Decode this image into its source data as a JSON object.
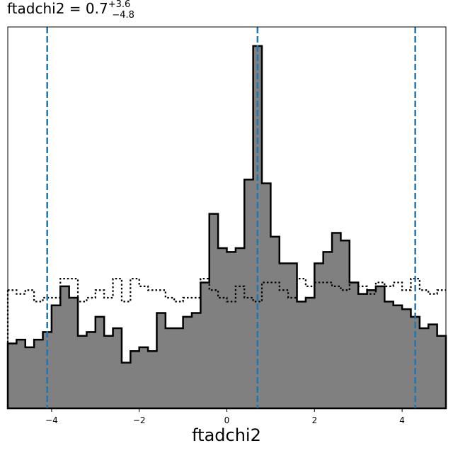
{
  "title": {
    "base": "ftadchi2 = 0.7",
    "upper": "+3.6",
    "lower": "−4.8"
  },
  "chart_data": {
    "type": "step-histogram",
    "title": "ftadchi2 = 0.7 +3.6 −4.8",
    "xlabel": "ftadchi2",
    "ylabel": "",
    "xlim": [
      -5,
      5
    ],
    "ylim": [
      0,
      1.0
    ],
    "xticks": [
      -4,
      -2,
      0,
      2,
      4
    ],
    "xtick_labels": [
      "−4",
      "−2",
      "0",
      "2",
      "4"
    ],
    "bin_edges": [
      -5.0,
      -4.8,
      -4.6,
      -4.4,
      -4.2,
      -4.0,
      -3.8,
      -3.6,
      -3.4,
      -3.2,
      -3.0,
      -2.8,
      -2.6,
      -2.4,
      -2.2,
      -2.0,
      -1.8,
      -1.6,
      -1.4,
      -1.2,
      -1.0,
      -0.8,
      -0.6,
      -0.4,
      -0.2,
      0.0,
      0.2,
      0.4,
      0.6,
      0.8,
      1.0,
      1.2,
      1.4,
      1.6,
      1.8,
      2.0,
      2.2,
      2.4,
      2.6,
      2.8,
      3.0,
      3.2,
      3.4,
      3.6,
      3.8,
      4.0,
      4.2,
      4.4,
      4.6,
      4.8,
      5.0
    ],
    "series": [
      {
        "style": "filled-gray-with-black-outline",
        "color": "#808080",
        "values": [
          0.17,
          0.18,
          0.16,
          0.18,
          0.2,
          0.27,
          0.32,
          0.29,
          0.19,
          0.2,
          0.24,
          0.19,
          0.21,
          0.12,
          0.15,
          0.16,
          0.15,
          0.25,
          0.21,
          0.21,
          0.24,
          0.25,
          0.33,
          0.51,
          0.42,
          0.41,
          0.42,
          0.6,
          0.95,
          0.59,
          0.45,
          0.38,
          0.38,
          0.28,
          0.29,
          0.38,
          0.41,
          0.46,
          0.44,
          0.33,
          0.3,
          0.31,
          0.32,
          0.28,
          0.27,
          0.26,
          0.24,
          0.21,
          0.22,
          0.19
        ]
      },
      {
        "style": "dotted-black-step",
        "color": "#000000",
        "values": [
          0.31,
          0.3,
          0.31,
          0.28,
          0.29,
          0.29,
          0.34,
          0.34,
          0.28,
          0.29,
          0.31,
          0.29,
          0.34,
          0.28,
          0.34,
          0.32,
          0.31,
          0.31,
          0.29,
          0.28,
          0.29,
          0.29,
          0.34,
          0.31,
          0.29,
          0.28,
          0.32,
          0.29,
          0.28,
          0.33,
          0.33,
          0.31,
          0.29,
          0.34,
          0.32,
          0.33,
          0.33,
          0.32,
          0.31,
          0.33,
          0.32,
          0.3,
          0.33,
          0.32,
          0.33,
          0.31,
          0.34,
          0.31,
          0.3,
          0.31
        ]
      }
    ],
    "vlines": [
      {
        "x": -4.1,
        "style": "dashed",
        "color": "#1f77b4"
      },
      {
        "x": 0.7,
        "style": "dashed",
        "color": "#1f77b4"
      },
      {
        "x": 4.3,
        "style": "dashed",
        "color": "#1f77b4"
      }
    ],
    "grid": false
  }
}
